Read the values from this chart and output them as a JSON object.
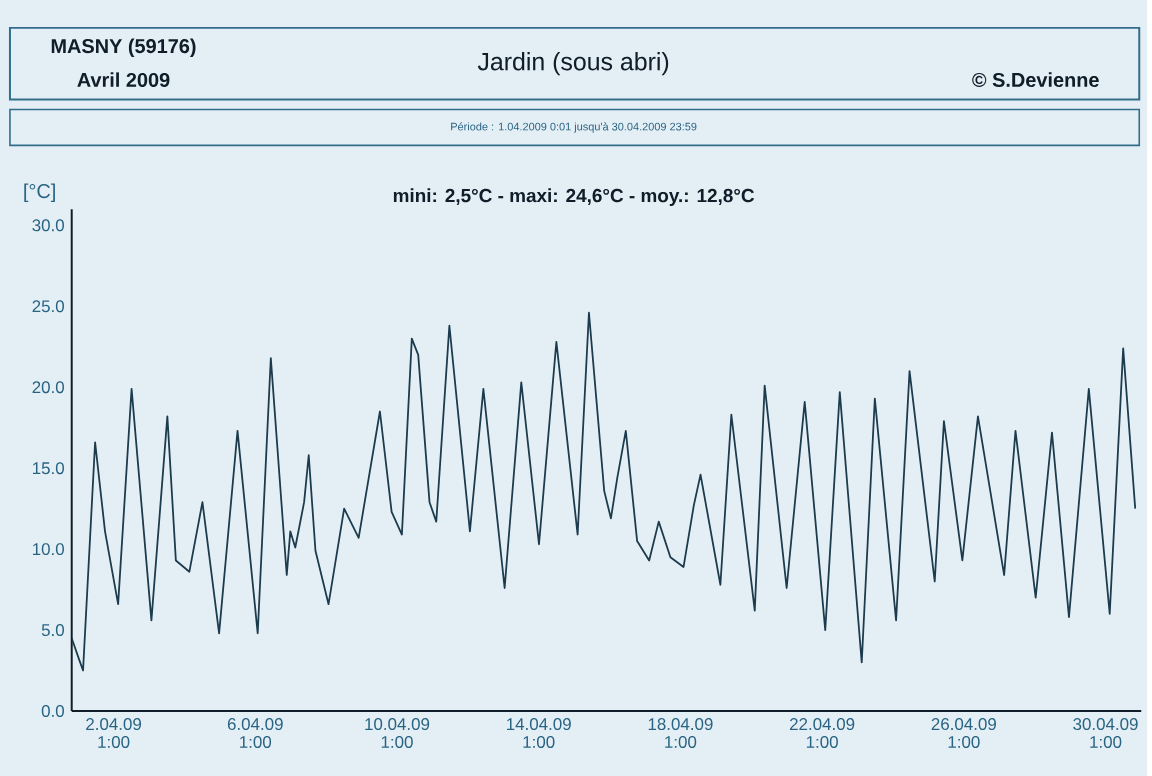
{
  "chart_data": {
    "type": "line",
    "title": "Jardin (sous abri)",
    "ylabel": "[°C]",
    "annotations": [
      "MASNY (59176)",
      "Avril  2009",
      "© S.Devienne",
      "Période :  1.04.2009   0:01   jusqu'à  30.04.2009   23:59",
      "mini:  2,5°C - maxi: 24,6°C - moy.: 12,8°C"
    ],
    "x": [
      "2009-03-31T20:38",
      "2009-04-01T01:12",
      "2009-04-01T04:19",
      "2009-04-01T12:29",
      "2009-04-01T19:12",
      "2009-04-02T04:05",
      "2009-04-02T13:12",
      "2009-04-03T02:38",
      "2009-04-03T13:26",
      "2009-04-03T19:12",
      "2009-04-04T04:19",
      "2009-04-04T13:12",
      "2009-04-05T00:29",
      "2009-04-05T12:58",
      "2009-04-06T02:38",
      "2009-04-06T11:31",
      "2009-04-06T22:19",
      "2009-04-07T00:43",
      "2009-04-07T04:05",
      "2009-04-07T10:05",
      "2009-04-07T13:12",
      "2009-04-07T17:46",
      "2009-04-08T02:38",
      "2009-04-08T13:12",
      "2009-04-08T23:02",
      "2009-04-09T13:26",
      "2009-04-09T21:22",
      "2009-04-10T04:19",
      "2009-04-10T11:02",
      "2009-04-10T15:22",
      "2009-04-10T23:02",
      "2009-04-11T03:36",
      "2009-04-11T12:29",
      "2009-04-12T02:24",
      "2009-04-12T11:31",
      "2009-04-13T01:55",
      "2009-04-13T13:12",
      "2009-04-14T01:12",
      "2009-04-14T12:58",
      "2009-04-15T03:22",
      "2009-04-15T11:02",
      "2009-04-15T21:22",
      "2009-04-16T01:55",
      "2009-04-16T06:14",
      "2009-04-16T12:00",
      "2009-04-16T19:41",
      "2009-04-17T03:50",
      "2009-04-17T10:19",
      "2009-04-17T18:14",
      "2009-04-18T03:07",
      "2009-04-18T10:05",
      "2009-04-18T14:38",
      "2009-04-19T04:05",
      "2009-04-19T11:31",
      "2009-04-20T03:22",
      "2009-04-20T10:05",
      "2009-04-21T00:58",
      "2009-04-21T13:12",
      "2009-04-22T03:07",
      "2009-04-22T12:58",
      "2009-04-23T03:50",
      "2009-04-23T12:43",
      "2009-04-24T03:07",
      "2009-04-24T12:14",
      "2009-04-25T05:17",
      "2009-04-25T11:31",
      "2009-04-26T00:00",
      "2009-04-26T10:34",
      "2009-04-27T04:19",
      "2009-04-27T12:00",
      "2009-04-28T01:41",
      "2009-04-28T12:43",
      "2009-04-29T00:14",
      "2009-04-29T13:41",
      "2009-04-30T03:50",
      "2009-04-30T12:58",
      "2009-04-30T21:07"
    ],
    "series": [
      {
        "color": "#1c3b4d",
        "values": [
          4.5,
          3.3,
          2.5,
          16.6,
          11.1,
          6.6,
          19.9,
          5.6,
          18.2,
          9.3,
          8.6,
          12.9,
          4.8,
          17.3,
          4.8,
          21.8,
          8.4,
          11.1,
          10.1,
          12.9,
          15.8,
          9.9,
          6.6,
          12.5,
          10.7,
          18.5,
          12.3,
          10.9,
          23.0,
          22.0,
          12.9,
          11.7,
          23.8,
          11.1,
          19.9,
          7.6,
          20.3,
          10.3,
          22.8,
          10.9,
          24.6,
          13.6,
          11.9,
          14.4,
          17.3,
          10.5,
          9.3,
          11.7,
          9.5,
          8.9,
          12.7,
          14.6,
          7.8,
          18.3,
          6.2,
          20.1,
          7.6,
          19.1,
          5.0,
          19.7,
          3.0,
          19.3,
          5.6,
          21.0,
          8.0,
          17.9,
          9.3,
          18.2,
          8.4,
          17.3,
          7.0,
          17.2,
          5.8,
          19.9,
          6.0,
          22.4,
          12.5
        ]
      }
    ],
    "xlim": [
      "2009-03-31T20:38",
      "2009-05-01T01:12"
    ],
    "ylim": [
      0,
      31
    ],
    "xticks": [
      {
        "value": "2009-04-02T01:00",
        "label": "2.04.09 1:00"
      },
      {
        "value": "2009-04-06T01:00",
        "label": "6.04.09 1:00"
      },
      {
        "value": "2009-04-10T01:00",
        "label": "10.04.09 1:00"
      },
      {
        "value": "2009-04-14T01:00",
        "label": "14.04.09 1:00"
      },
      {
        "value": "2009-04-18T01:00",
        "label": "18.04.09 1:00"
      },
      {
        "value": "2009-04-22T01:00",
        "label": "22.04.09 1:00"
      },
      {
        "value": "2009-04-26T01:00",
        "label": "26.04.09 1:00"
      },
      {
        "value": "2009-04-30T01:00",
        "label": "30.04.09 1:00"
      }
    ],
    "yticks": [
      {
        "value": 0,
        "label": "0.0"
      },
      {
        "value": 5,
        "label": "5.0"
      },
      {
        "value": 10,
        "label": "10.0"
      },
      {
        "value": 15,
        "label": "15.0"
      },
      {
        "value": 20,
        "label": "20.0"
      },
      {
        "value": 25,
        "label": "25.0"
      },
      {
        "value": 30,
        "label": "30.0"
      }
    ],
    "grid": false,
    "marker": "none",
    "line_style": "solid"
  }
}
